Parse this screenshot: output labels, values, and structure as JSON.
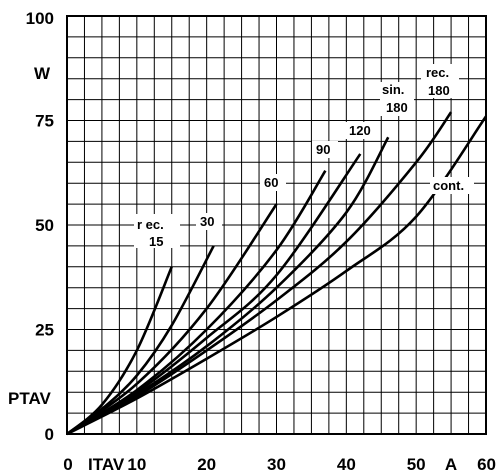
{
  "chart_data": {
    "type": "line",
    "xlabel": "ITAV",
    "x_unit": "A",
    "ylabel": "PTAV",
    "y_unit": "W",
    "xlim": [
      0,
      60
    ],
    "ylim": [
      0,
      100
    ],
    "x_ticks": [
      "0",
      "10",
      "20",
      "30",
      "40",
      "50",
      "60"
    ],
    "y_ticks": [
      "0",
      "25",
      "50",
      "75",
      "100"
    ],
    "grid": true,
    "series": [
      {
        "name": "rec. 15",
        "x": [
          0,
          5,
          10,
          15
        ],
        "y": [
          0,
          7,
          20,
          40
        ]
      },
      {
        "name": "30",
        "x": [
          0,
          5,
          10,
          15,
          21
        ],
        "y": [
          0,
          6,
          14,
          26,
          45
        ]
      },
      {
        "name": "60",
        "x": [
          0,
          10,
          20,
          30
        ],
        "y": [
          0,
          12,
          30,
          55
        ]
      },
      {
        "name": "90",
        "x": [
          0,
          10,
          20,
          30,
          37
        ],
        "y": [
          0,
          10.5,
          25,
          44,
          63
        ]
      },
      {
        "name": "120",
        "x": [
          0,
          10,
          20,
          30,
          42
        ],
        "y": [
          0,
          10,
          23,
          38,
          67
        ]
      },
      {
        "name": "sin. 180",
        "x": [
          0,
          10,
          20,
          30,
          40,
          46
        ],
        "y": [
          0,
          9.5,
          21,
          35,
          53,
          71
        ]
      },
      {
        "name": "rec. 180",
        "x": [
          0,
          10,
          20,
          30,
          40,
          50,
          55
        ],
        "y": [
          0,
          9,
          20,
          32,
          46,
          65,
          77
        ]
      },
      {
        "name": "cont.",
        "x": [
          0,
          10,
          20,
          30,
          40,
          50,
          60
        ],
        "y": [
          0,
          8.5,
          18,
          28,
          39,
          52,
          76
        ]
      }
    ]
  }
}
